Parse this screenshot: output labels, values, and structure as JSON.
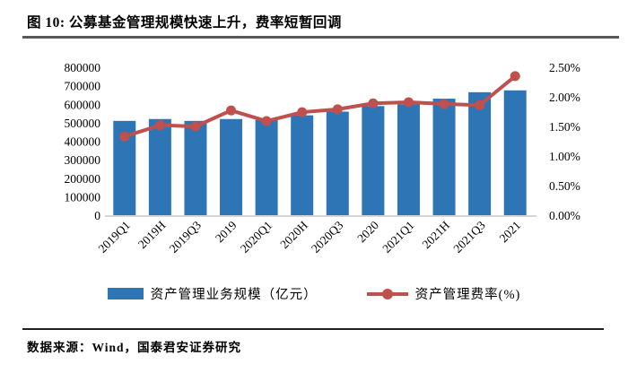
{
  "header": {
    "figure_label": "图 10:",
    "title": "公募基金管理规模快速上升，费率短暂回调"
  },
  "footer": {
    "source": "数据来源：Wind，国泰君安证券研究"
  },
  "colors": {
    "bar": "#2E75B6",
    "line": "#C0504D",
    "axis_line": "#C9C9C9",
    "title_rule": "#595959",
    "footer_rule": "#1f1f1f"
  },
  "chart_data": {
    "type": "bar",
    "subtype": "bar-line-combo",
    "grid": false,
    "legend_position": "bottom",
    "categories": [
      "2019Q1",
      "2019H",
      "2019Q3",
      "2019",
      "2020Q1",
      "2020H",
      "2020Q3",
      "2020",
      "2021Q1",
      "2021H",
      "2021Q3",
      "2021"
    ],
    "series": [
      {
        "name": "资产管理业务规模（亿元）",
        "type": "bar",
        "axis": "left",
        "values": [
          510000,
          520000,
          510000,
          520000,
          515000,
          540000,
          560000,
          590000,
          600000,
          630000,
          665000,
          675000
        ]
      },
      {
        "name": "资产管理费率(%)",
        "type": "line",
        "axis": "right",
        "values": [
          1.33,
          1.52,
          1.5,
          1.77,
          1.59,
          1.74,
          1.79,
          1.89,
          1.91,
          1.88,
          1.86,
          2.35
        ]
      }
    ],
    "left_axis": {
      "min": 0,
      "max": 800000,
      "step": 100000,
      "tick_labels": [
        "0",
        "100000",
        "200000",
        "300000",
        "400000",
        "500000",
        "600000",
        "700000",
        "800000"
      ]
    },
    "right_axis": {
      "min": 0,
      "max": 2.5,
      "step": 0.5,
      "tick_labels": [
        "0.00%",
        "0.50%",
        "1.00%",
        "1.50%",
        "2.00%",
        "2.50%"
      ]
    }
  }
}
